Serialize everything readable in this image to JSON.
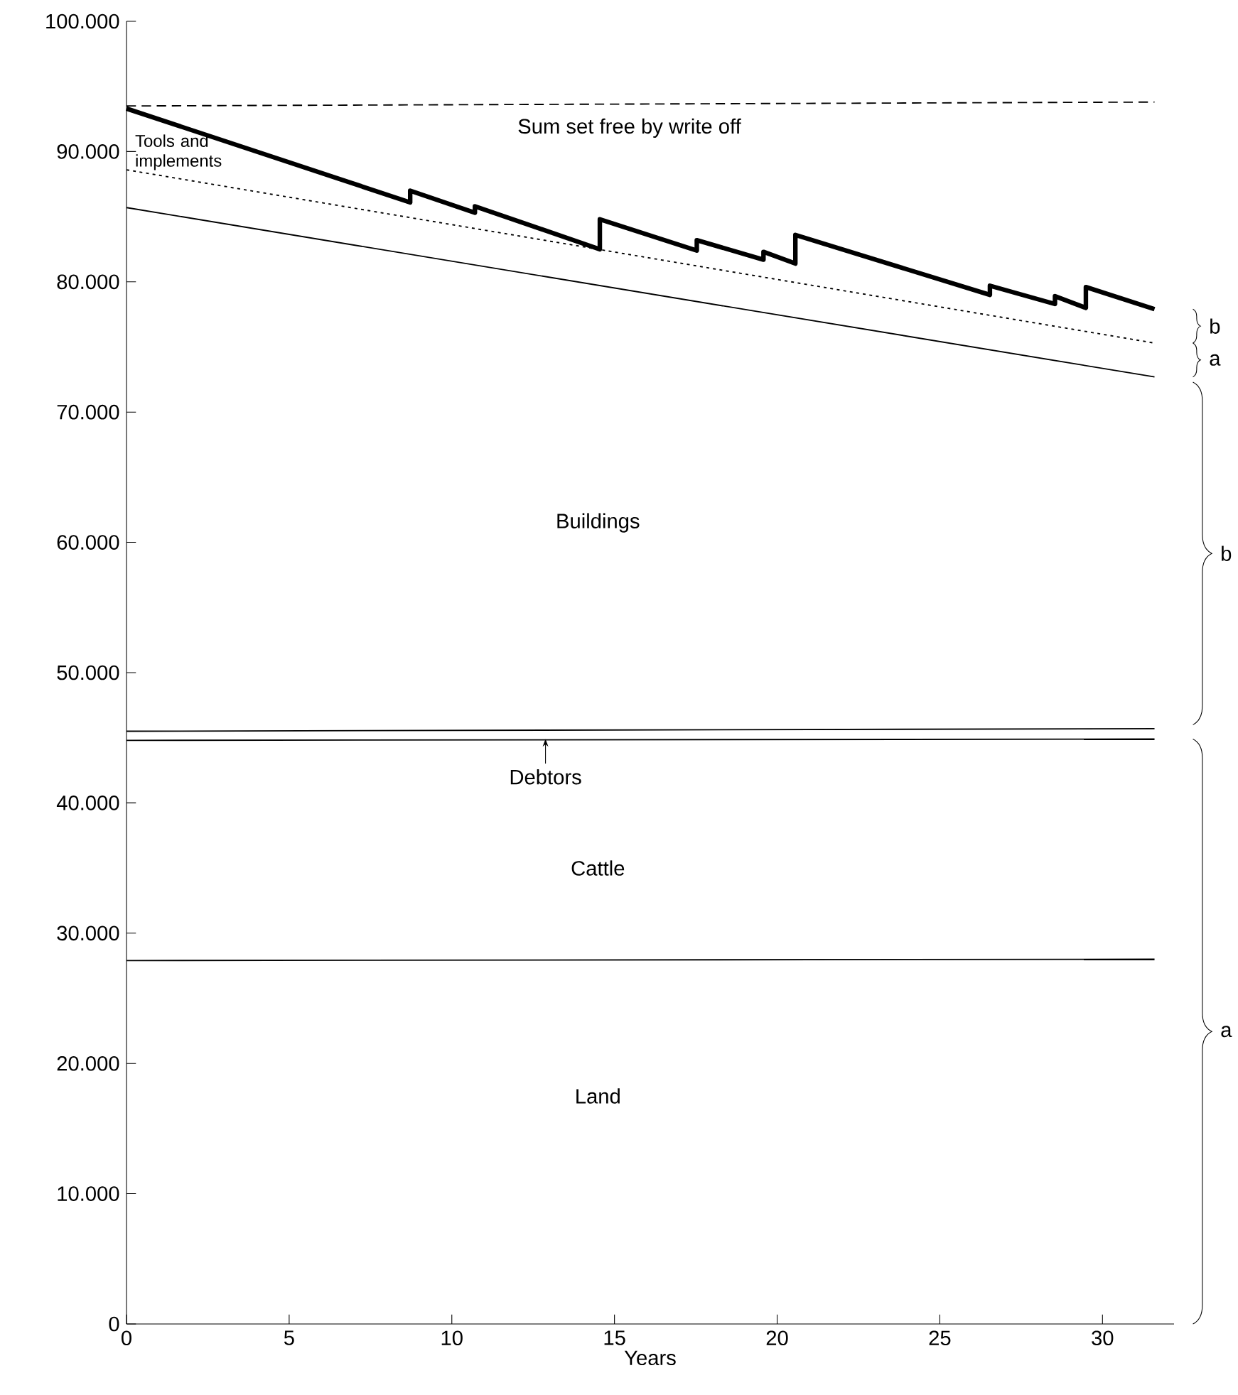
{
  "chart_data": {
    "type": "line",
    "xlabel": "Years",
    "xlim": [
      0,
      32.2
    ],
    "ylim": [
      0,
      100000
    ],
    "xticks": [
      0,
      5,
      10,
      15,
      20,
      25,
      30
    ],
    "yticks": [
      0,
      {
        "value": 10000,
        "label": "10.000"
      },
      {
        "value": 20000,
        "label": "20.000"
      },
      {
        "value": 30000,
        "label": "30.000"
      },
      {
        "value": 40000,
        "label": "40.000"
      },
      {
        "value": 50000,
        "label": "50.000"
      },
      {
        "value": 60000,
        "label": "60.000"
      },
      {
        "value": 70000,
        "label": "70.000"
      },
      {
        "value": 80000,
        "label": "80.000"
      },
      {
        "value": 90000,
        "label": "90.000"
      },
      {
        "value": 100000,
        "label": "100.000"
      }
    ],
    "grid": false,
    "marker": "none",
    "series": [
      {
        "color": "#000000",
        "line_style": "solid",
        "x": [
          0,
          8.72,
          8.72,
          10.71,
          10.71,
          14.55,
          14.55,
          17.53,
          17.53,
          19.58,
          19.58,
          20.56,
          20.56,
          26.54,
          26.54,
          28.54,
          28.54,
          29.49,
          29.49,
          31.6
        ],
        "values": [
          93300,
          86100,
          87000,
          85300,
          85800,
          82500,
          84800,
          82400,
          83200,
          81700,
          82300,
          81400,
          83600,
          79000,
          79700,
          78300,
          78900,
          78000,
          79600,
          77900
        ]
      },
      {
        "color": "#000000",
        "line_style": "dotted",
        "x": [
          0,
          31.6
        ],
        "values": [
          88600,
          75300
        ]
      },
      {
        "color": "#000000",
        "line_style": "solid",
        "x": [
          0,
          31.6
        ],
        "values": [
          85700,
          72700
        ]
      },
      {
        "color": "#000000",
        "line_style": "solid",
        "x": [
          0,
          31.6
        ],
        "values": [
          45500,
          45700
        ]
      },
      {
        "color": "#000000",
        "line_style": "solid",
        "x": [
          0,
          31.6
        ],
        "values": [
          44800,
          44900
        ]
      },
      {
        "color": "#000000",
        "line_style": "solid",
        "x": [
          0,
          31.6
        ],
        "values": [
          27900,
          28000
        ]
      },
      {
        "color": "#000000",
        "line_style": "dashed",
        "x": [
          0,
          31.6
        ],
        "values": [
          93500,
          93800
        ]
      }
    ],
    "annotations": [
      "Sum set free by write off",
      "Tools and implements",
      "Buildings",
      "Debtors",
      "Cattle",
      "Land",
      "b",
      "a",
      "b",
      "a"
    ]
  }
}
